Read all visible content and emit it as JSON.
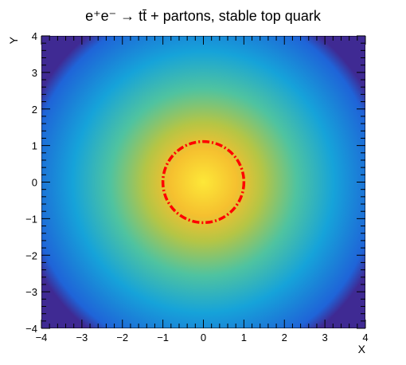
{
  "chart_data": {
    "type": "heatmap",
    "title": "e⁺e⁻ → tt̄ + partons, stable top quark",
    "xlabel": "X",
    "ylabel": "Y",
    "xlim": [
      -4,
      4
    ],
    "ylim": [
      -4,
      4
    ],
    "x_ticks": [
      -4,
      -3,
      -2,
      -1,
      0,
      1,
      2,
      3,
      4
    ],
    "y_ticks": [
      -4,
      -3,
      -2,
      -1,
      0,
      1,
      2,
      3,
      4
    ],
    "x_tick_labels": [
      "−4",
      "−3",
      "−2",
      "−1",
      "0",
      "1",
      "2",
      "3",
      "4"
    ],
    "y_tick_labels": [
      "−4",
      "−3",
      "−2",
      "−1",
      "0",
      "1",
      "2",
      "3",
      "4"
    ],
    "distribution": {
      "shape": "radial",
      "center": [
        0,
        0
      ],
      "peak_region_radius": 1.0,
      "support_radius": 4.6,
      "corner_fill": "lowest"
    },
    "colorscale": [
      "#3f2a93",
      "#1f64d8",
      "#16a3d9",
      "#4fc3a0",
      "#b5c545",
      "#f5c02f",
      "#fde838"
    ],
    "overlay_circle": {
      "center": [
        0,
        0
      ],
      "radius": 1.0,
      "color": "#ff0000",
      "style": "dash-dot"
    },
    "grid": false,
    "legend": "none"
  }
}
